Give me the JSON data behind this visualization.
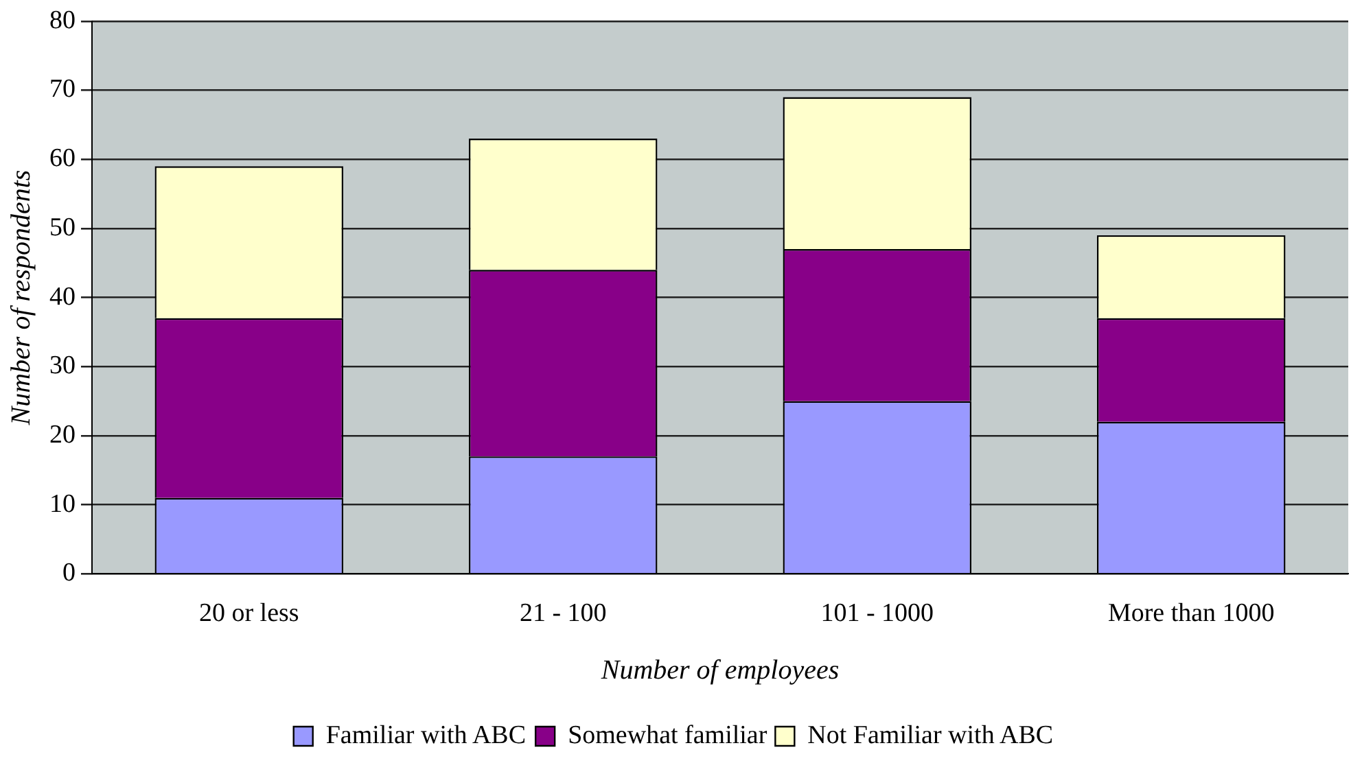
{
  "chart_data": {
    "type": "bar",
    "stacked": true,
    "xlabel": "Number of employees",
    "ylabel": "Number of respondents",
    "categories": [
      "20 or less",
      "21 - 100",
      "101 - 1000",
      "More than 1000"
    ],
    "series": [
      {
        "name": "Familiar with ABC",
        "color": "#9999ff",
        "values": [
          11,
          17,
          25,
          22
        ]
      },
      {
        "name": "Somewhat familiar",
        "color": "#880088",
        "values": [
          26,
          27,
          22,
          15
        ]
      },
      {
        "name": "Not Familiar with ABC",
        "color": "#ffffcc",
        "values": [
          22,
          19,
          22,
          12
        ]
      }
    ],
    "ylim": [
      0,
      80
    ],
    "yticks": [
      0,
      10,
      20,
      30,
      40,
      50,
      60,
      70,
      80
    ],
    "grid": "y",
    "legend": "bottom"
  }
}
